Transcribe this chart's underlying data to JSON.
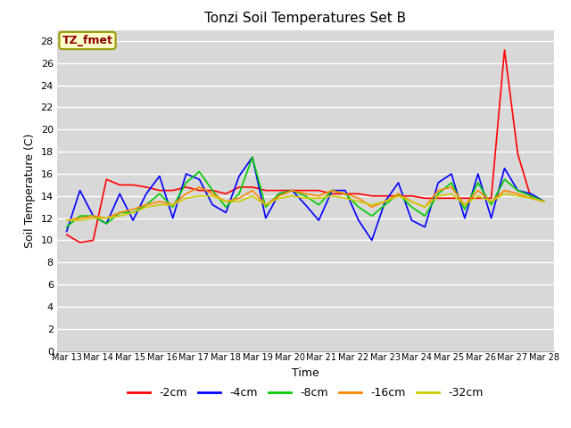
{
  "title": "Tonzi Soil Temperatures Set B",
  "xlabel": "Time",
  "ylabel": "Soil Temperature (C)",
  "ylim": [
    0,
    29
  ],
  "yticks": [
    0,
    2,
    4,
    6,
    8,
    10,
    12,
    14,
    16,
    18,
    20,
    22,
    24,
    26,
    28
  ],
  "xtick_labels": [
    "Mar 13",
    "Mar 14",
    "Mar 15",
    "Mar 16",
    "Mar 17",
    "Mar 18",
    "Mar 19",
    "Mar 20",
    "Mar 21",
    "Mar 22",
    "Mar 23",
    "Mar 24",
    "Mar 25",
    "Mar 26",
    "Mar 27",
    "Mar 28"
  ],
  "fig_bg_color": "#ffffff",
  "plot_bg_color": "#d8d8d8",
  "grid_color": "#ffffff",
  "annotation_label": "TZ_fmet",
  "annotation_color": "#8b0000",
  "annotation_bg": "#ffffcc",
  "annotation_edge": "#999900",
  "series": {
    "-2cm": {
      "color": "#ff0000",
      "data": [
        10.5,
        9.8,
        10.0,
        15.5,
        15.0,
        15.0,
        14.8,
        14.5,
        14.5,
        14.8,
        14.5,
        14.5,
        14.2,
        14.8,
        14.8,
        14.5,
        14.5,
        14.5,
        14.5,
        14.5,
        14.2,
        14.2,
        14.2,
        14.0,
        14.0,
        14.0,
        14.0,
        13.8,
        13.8,
        13.8,
        13.8,
        13.8,
        13.8,
        27.2,
        17.8,
        13.8,
        13.5
      ]
    },
    "-4cm": {
      "color": "#0000ff",
      "data": [
        10.8,
        14.5,
        12.2,
        11.5,
        14.2,
        11.8,
        14.2,
        15.8,
        12.0,
        16.0,
        15.5,
        13.2,
        12.5,
        15.8,
        17.5,
        12.0,
        14.2,
        14.5,
        13.2,
        11.8,
        14.5,
        14.5,
        11.8,
        10.0,
        13.5,
        15.2,
        11.8,
        11.2,
        15.2,
        16.0,
        12.0,
        16.0,
        12.0,
        16.5,
        14.5,
        14.2,
        13.5
      ]
    },
    "-8cm": {
      "color": "#00cc00",
      "data": [
        11.2,
        12.2,
        12.2,
        11.5,
        12.5,
        12.5,
        13.2,
        14.2,
        13.0,
        15.2,
        16.2,
        14.5,
        13.0,
        14.2,
        17.5,
        13.0,
        14.2,
        14.5,
        14.0,
        13.2,
        14.5,
        14.2,
        13.0,
        12.2,
        13.2,
        14.2,
        13.0,
        12.2,
        14.2,
        15.2,
        12.8,
        15.2,
        13.2,
        15.5,
        14.5,
        14.0,
        13.5
      ]
    },
    "-16cm": {
      "color": "#ff8800",
      "data": [
        11.8,
        12.0,
        12.2,
        12.0,
        12.5,
        12.8,
        13.2,
        13.5,
        13.2,
        14.2,
        14.8,
        14.2,
        13.5,
        13.8,
        14.5,
        13.2,
        14.0,
        14.5,
        14.2,
        14.0,
        14.5,
        14.2,
        13.8,
        13.0,
        13.5,
        14.2,
        13.5,
        13.0,
        14.5,
        14.8,
        13.2,
        14.5,
        13.5,
        14.5,
        14.2,
        13.8,
        13.5
      ]
    },
    "-32cm": {
      "color": "#cccc00",
      "data": [
        11.8,
        11.8,
        12.0,
        12.0,
        12.2,
        12.5,
        13.0,
        13.2,
        13.2,
        13.8,
        14.0,
        14.0,
        13.5,
        13.5,
        14.0,
        13.2,
        13.8,
        14.0,
        13.8,
        13.8,
        14.0,
        13.8,
        13.5,
        13.2,
        13.5,
        14.0,
        13.5,
        13.0,
        14.0,
        14.2,
        13.2,
        14.0,
        13.5,
        14.2,
        14.0,
        13.8,
        13.5
      ]
    }
  },
  "legend_order": [
    "-2cm",
    "-4cm",
    "-8cm",
    "-16cm",
    "-32cm"
  ]
}
